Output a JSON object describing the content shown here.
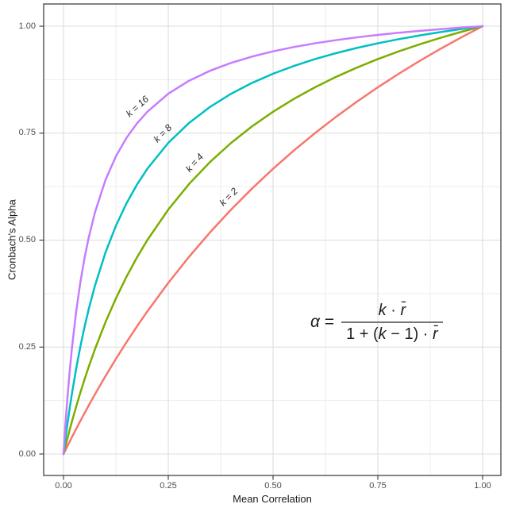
{
  "figure": {
    "background": "#ffffff",
    "panel_border_color": "#333333",
    "grid_major_color": "#dcdcdc",
    "grid_minor_color": "#ededed",
    "tick_mark_color": "#333333",
    "tick_label_color": "#4d4d4d",
    "axis_title_color": "#1a1a1a"
  },
  "formula": {
    "alpha": "α",
    "equals": "=",
    "num_k": "k",
    "num_op": " · ",
    "num_r": "r̄",
    "den_pre": "1 + (",
    "den_k": "k",
    "den_mid": " − 1) · ",
    "den_r": "r̄"
  },
  "chart_data": {
    "type": "line",
    "title": "",
    "xlabel": "Mean Correlation",
    "ylabel": "Cronbach's Alpha",
    "xlim": [
      0,
      1
    ],
    "ylim": [
      0,
      1
    ],
    "grid": true,
    "legend_position": "none",
    "formula_text": "alpha = k * rbar / (1 + (k - 1) * rbar)",
    "annotations": [
      {
        "text": "α = k·r̄ / (1 + (k − 1)·r̄)",
        "x": 0.754,
        "y": 0.304
      }
    ],
    "x_ticks": {
      "values": [
        0,
        0.25,
        0.5,
        0.75,
        1
      ],
      "labels": [
        "0.00",
        "0.25",
        "0.50",
        "0.75",
        "1.00"
      ]
    },
    "y_ticks": {
      "values": [
        0,
        0.25,
        0.5,
        0.75,
        1
      ],
      "labels": [
        "0.00",
        "0.25",
        "0.50",
        "0.75",
        "1.00"
      ]
    },
    "x_minor": [
      0.125,
      0.375,
      0.625,
      0.875
    ],
    "y_minor": [
      0.125,
      0.375,
      0.625,
      0.875
    ],
    "x": [
      0,
      0.005,
      0.01,
      0.015,
      0.02,
      0.03,
      0.04,
      0.05,
      0.06,
      0.075,
      0.1,
      0.125,
      0.15,
      0.175,
      0.2,
      0.25,
      0.3,
      0.35,
      0.4,
      0.45,
      0.5,
      0.55,
      0.6,
      0.65,
      0.7,
      0.75,
      0.8,
      0.85,
      0.9,
      0.95,
      1
    ],
    "series": [
      {
        "name": "k = 2",
        "k": 2,
        "color": "#F8766D",
        "values": [
          0,
          0.00995,
          0.0198,
          0.02956,
          0.0392,
          0.0583,
          0.0769,
          0.0952,
          0.1132,
          0.1395,
          0.1818,
          0.2222,
          0.2609,
          0.2979,
          0.3333,
          0.4,
          0.4615,
          0.5185,
          0.5714,
          0.6207,
          0.6667,
          0.7097,
          0.75,
          0.7879,
          0.8235,
          0.8571,
          0.8889,
          0.9189,
          0.9474,
          0.9744,
          1
        ],
        "label": {
          "text": "k = 2",
          "x": 0.394,
          "y": 0.601,
          "rotation": -45
        }
      },
      {
        "name": "k = 4",
        "k": 4,
        "color": "#7CAE00",
        "values": [
          0,
          0.0197,
          0.0388,
          0.0574,
          0.0755,
          0.1101,
          0.1429,
          0.1739,
          0.2034,
          0.2449,
          0.3077,
          0.3636,
          0.4138,
          0.459,
          0.5,
          0.5714,
          0.6316,
          0.6829,
          0.7273,
          0.766,
          0.8,
          0.8302,
          0.8571,
          0.8814,
          0.9032,
          0.9231,
          0.9412,
          0.9577,
          0.973,
          0.987,
          1
        ],
        "label": {
          "text": "k = 4",
          "x": 0.3125,
          "y": 0.681,
          "rotation": -48
        }
      },
      {
        "name": "k = 8",
        "k": 8,
        "color": "#00BFC4",
        "values": [
          0,
          0.0386,
          0.0748,
          0.1086,
          0.1404,
          0.1983,
          0.25,
          0.2963,
          0.338,
          0.3934,
          0.4706,
          0.5333,
          0.5854,
          0.6292,
          0.6667,
          0.7273,
          0.7742,
          0.8116,
          0.8421,
          0.8675,
          0.8889,
          0.9072,
          0.9231,
          0.9369,
          0.9492,
          0.96,
          0.9697,
          0.9784,
          0.9863,
          0.9935,
          1
        ],
        "label": {
          "text": "k = 8",
          "x": 0.237,
          "y": 0.75,
          "rotation": -45
        }
      },
      {
        "name": "k = 16",
        "k": 16,
        "color": "#C77CFF",
        "values": [
          0,
          0.0744,
          0.1391,
          0.1959,
          0.2462,
          0.331,
          0.4,
          0.4571,
          0.5053,
          0.5647,
          0.64,
          0.6957,
          0.7385,
          0.7724,
          0.8,
          0.8421,
          0.8727,
          0.896,
          0.9143,
          0.929,
          0.9412,
          0.9514,
          0.96,
          0.9674,
          0.9739,
          0.9796,
          0.9846,
          0.9891,
          0.9931,
          0.9967,
          1
        ],
        "label": {
          "text": "k = 16",
          "x": 0.176,
          "y": 0.813,
          "rotation": -42
        }
      }
    ]
  }
}
